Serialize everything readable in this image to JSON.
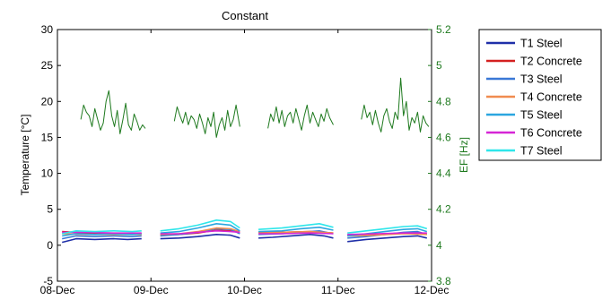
{
  "chart_data": {
    "type": "line",
    "title": "Constant",
    "ylabel": "Temperature [°C]",
    "y2label": "EF [Hz]",
    "xlim": [
      "08-Dec",
      "12-Dec"
    ],
    "ylim": [
      -5,
      30
    ],
    "y2lim": [
      3.8,
      5.2
    ],
    "xticks": [
      "08-Dec",
      "09-Dec",
      "10-Dec",
      "11-Dec",
      "12-Dec"
    ],
    "yticks": [
      "-5",
      "0",
      "5",
      "10",
      "15",
      "20",
      "25",
      "30"
    ],
    "y2ticks": [
      "3.8",
      "4",
      "4.2",
      "4.4",
      "4.6",
      "4.8",
      "5",
      "5.2"
    ],
    "grid": false,
    "legend_position": "outside-top-right",
    "series": [
      {
        "name": "T1 Steel",
        "color": "#1f2fa8",
        "axis": "left",
        "segments": [
          {
            "x": [
              0.05,
              0.2,
              0.4,
              0.6,
              0.75,
              0.9
            ],
            "y": [
              0.4,
              0.9,
              0.8,
              0.9,
              0.8,
              0.9
            ]
          },
          {
            "x": [
              1.1,
              1.3,
              1.5,
              1.7,
              1.85,
              1.95
            ],
            "y": [
              0.9,
              1.0,
              1.2,
              1.5,
              1.4,
              1.0
            ]
          },
          {
            "x": [
              2.15,
              2.3,
              2.5,
              2.7,
              2.85,
              2.95
            ],
            "y": [
              1.0,
              1.1,
              1.3,
              1.5,
              1.3,
              1.0
            ]
          },
          {
            "x": [
              3.1,
              3.3,
              3.5,
              3.7,
              3.85,
              3.95
            ],
            "y": [
              0.5,
              0.8,
              1.0,
              1.2,
              1.3,
              1.0
            ]
          }
        ]
      },
      {
        "name": "T2 Concrete",
        "color": "#d42020",
        "axis": "left",
        "segments": [
          {
            "x": [
              0.05,
              0.3,
              0.6,
              0.9
            ],
            "y": [
              1.9,
              1.7,
              1.6,
              1.6
            ]
          },
          {
            "x": [
              1.1,
              1.3,
              1.5,
              1.7,
              1.85,
              1.95
            ],
            "y": [
              1.4,
              1.5,
              1.7,
              2.1,
              2.0,
              1.8
            ]
          },
          {
            "x": [
              2.15,
              2.4,
              2.7,
              2.95
            ],
            "y": [
              1.8,
              1.8,
              1.9,
              1.7
            ]
          },
          {
            "x": [
              3.1,
              3.4,
              3.7,
              3.95
            ],
            "y": [
              1.4,
              1.5,
              1.7,
              1.6
            ]
          }
        ]
      },
      {
        "name": "T3 Steel",
        "color": "#3a78d6",
        "axis": "left",
        "segments": [
          {
            "x": [
              0.05,
              0.2,
              0.4,
              0.6,
              0.8,
              0.9
            ],
            "y": [
              0.9,
              1.3,
              1.2,
              1.3,
              1.2,
              1.3
            ]
          },
          {
            "x": [
              1.1,
              1.3,
              1.5,
              1.7,
              1.85,
              1.95
            ],
            "y": [
              1.3,
              1.5,
              1.8,
              2.3,
              2.2,
              1.6
            ]
          },
          {
            "x": [
              2.15,
              2.4,
              2.6,
              2.8,
              2.95
            ],
            "y": [
              1.5,
              1.6,
              1.8,
              2.0,
              1.6
            ]
          },
          {
            "x": [
              3.1,
              3.3,
              3.5,
              3.7,
              3.85,
              3.95
            ],
            "y": [
              1.0,
              1.2,
              1.5,
              1.8,
              1.9,
              1.5
            ]
          }
        ]
      },
      {
        "name": "T4 Concrete",
        "color": "#f08c50",
        "axis": "left",
        "segments": [
          {
            "x": [
              0.05,
              0.3,
              0.6,
              0.9
            ],
            "y": [
              1.6,
              1.5,
              1.5,
              1.5
            ]
          },
          {
            "x": [
              1.1,
              1.3,
              1.5,
              1.7,
              1.85,
              1.95
            ],
            "y": [
              1.5,
              1.6,
              1.9,
              2.4,
              2.3,
              1.9
            ]
          },
          {
            "x": [
              2.15,
              2.4,
              2.7,
              2.95
            ],
            "y": [
              1.7,
              1.8,
              1.9,
              1.7
            ]
          },
          {
            "x": [
              3.1,
              3.4,
              3.7,
              3.95
            ],
            "y": [
              1.3,
              1.4,
              1.6,
              1.5
            ]
          }
        ]
      },
      {
        "name": "T5 Steel",
        "color": "#2ba6e0",
        "axis": "left",
        "segments": [
          {
            "x": [
              0.05,
              0.2,
              0.4,
              0.6,
              0.8,
              0.9
            ],
            "y": [
              1.3,
              1.6,
              1.5,
              1.6,
              1.5,
              1.6
            ]
          },
          {
            "x": [
              1.1,
              1.3,
              1.5,
              1.7,
              1.85,
              1.95
            ],
            "y": [
              1.7,
              1.9,
              2.4,
              3.0,
              2.8,
              2.0
            ]
          },
          {
            "x": [
              2.15,
              2.4,
              2.6,
              2.8,
              2.95
            ],
            "y": [
              1.9,
              2.0,
              2.3,
              2.5,
              2.1
            ]
          },
          {
            "x": [
              3.1,
              3.3,
              3.5,
              3.7,
              3.85,
              3.95
            ],
            "y": [
              1.3,
              1.6,
              1.9,
              2.2,
              2.3,
              1.9
            ]
          }
        ]
      },
      {
        "name": "T6 Concrete",
        "color": "#d625d6",
        "axis": "left",
        "segments": [
          {
            "x": [
              0.05,
              0.3,
              0.6,
              0.9
            ],
            "y": [
              1.8,
              1.8,
              1.7,
              1.7
            ]
          },
          {
            "x": [
              1.1,
              1.3,
              1.5,
              1.7,
              1.85,
              1.95
            ],
            "y": [
              1.6,
              1.6,
              1.8,
              2.0,
              1.9,
              1.8
            ]
          },
          {
            "x": [
              2.15,
              2.4,
              2.7,
              2.95
            ],
            "y": [
              1.6,
              1.6,
              1.7,
              1.6
            ]
          },
          {
            "x": [
              3.1,
              3.4,
              3.7,
              3.95
            ],
            "y": [
              1.5,
              1.6,
              1.7,
              1.7
            ]
          }
        ]
      },
      {
        "name": "T7 Steel",
        "color": "#2ee6ea",
        "axis": "left",
        "segments": [
          {
            "x": [
              0.05,
              0.2,
              0.4,
              0.6,
              0.8,
              0.9
            ],
            "y": [
              1.6,
              2.0,
              1.9,
              2.0,
              1.9,
              2.0
            ]
          },
          {
            "x": [
              1.1,
              1.3,
              1.5,
              1.7,
              1.85,
              1.95
            ],
            "y": [
              2.0,
              2.3,
              2.8,
              3.5,
              3.3,
              2.4
            ]
          },
          {
            "x": [
              2.15,
              2.4,
              2.6,
              2.8,
              2.95
            ],
            "y": [
              2.2,
              2.4,
              2.7,
              3.0,
              2.5
            ]
          },
          {
            "x": [
              3.1,
              3.3,
              3.5,
              3.7,
              3.85,
              3.95
            ],
            "y": [
              1.7,
              2.0,
              2.3,
              2.6,
              2.7,
              2.3
            ]
          }
        ]
      },
      {
        "name": "EF",
        "color": "#1f7a1f",
        "axis": "right",
        "segments": [
          {
            "x": [
              0.25,
              0.28,
              0.31,
              0.34,
              0.37,
              0.4,
              0.43,
              0.46,
              0.49,
              0.52,
              0.55,
              0.58,
              0.61,
              0.64,
              0.67,
              0.7,
              0.73,
              0.76,
              0.79,
              0.82,
              0.85,
              0.88,
              0.91,
              0.94
            ],
            "y": [
              4.7,
              4.78,
              4.74,
              4.72,
              4.66,
              4.76,
              4.7,
              4.64,
              4.68,
              4.8,
              4.86,
              4.72,
              4.66,
              4.75,
              4.62,
              4.7,
              4.79,
              4.67,
              4.64,
              4.73,
              4.69,
              4.64,
              4.67,
              4.65
            ]
          },
          {
            "x": [
              1.25,
              1.28,
              1.31,
              1.34,
              1.37,
              1.4,
              1.43,
              1.46,
              1.49,
              1.52,
              1.55,
              1.58,
              1.61,
              1.64,
              1.67,
              1.7,
              1.73,
              1.76,
              1.79,
              1.82,
              1.85,
              1.88,
              1.91,
              1.95
            ],
            "y": [
              4.69,
              4.77,
              4.72,
              4.68,
              4.74,
              4.67,
              4.72,
              4.7,
              4.65,
              4.73,
              4.68,
              4.62,
              4.71,
              4.66,
              4.74,
              4.6,
              4.67,
              4.71,
              4.64,
              4.75,
              4.66,
              4.7,
              4.78,
              4.66
            ]
          },
          {
            "x": [
              2.25,
              2.28,
              2.31,
              2.34,
              2.37,
              2.4,
              2.43,
              2.46,
              2.49,
              2.52,
              2.55,
              2.58,
              2.61,
              2.64,
              2.67,
              2.7,
              2.73,
              2.76,
              2.79,
              2.82,
              2.85,
              2.88,
              2.91,
              2.95
            ],
            "y": [
              4.65,
              4.73,
              4.69,
              4.77,
              4.68,
              4.75,
              4.66,
              4.72,
              4.74,
              4.68,
              4.76,
              4.7,
              4.64,
              4.72,
              4.78,
              4.68,
              4.74,
              4.7,
              4.66,
              4.73,
              4.69,
              4.76,
              4.71,
              4.67
            ]
          },
          {
            "x": [
              3.25,
              3.28,
              3.31,
              3.34,
              3.37,
              3.4,
              3.43,
              3.46,
              3.49,
              3.52,
              3.55,
              3.58,
              3.61,
              3.64,
              3.67,
              3.7,
              3.73,
              3.76,
              3.79,
              3.82,
              3.85,
              3.88,
              3.91,
              3.94,
              3.97
            ],
            "y": [
              4.7,
              4.78,
              4.71,
              4.74,
              4.67,
              4.75,
              4.68,
              4.63,
              4.72,
              4.76,
              4.69,
              4.65,
              4.74,
              4.7,
              4.93,
              4.72,
              4.8,
              4.64,
              4.71,
              4.68,
              4.74,
              4.63,
              4.72,
              4.68,
              4.66
            ]
          }
        ]
      }
    ]
  }
}
